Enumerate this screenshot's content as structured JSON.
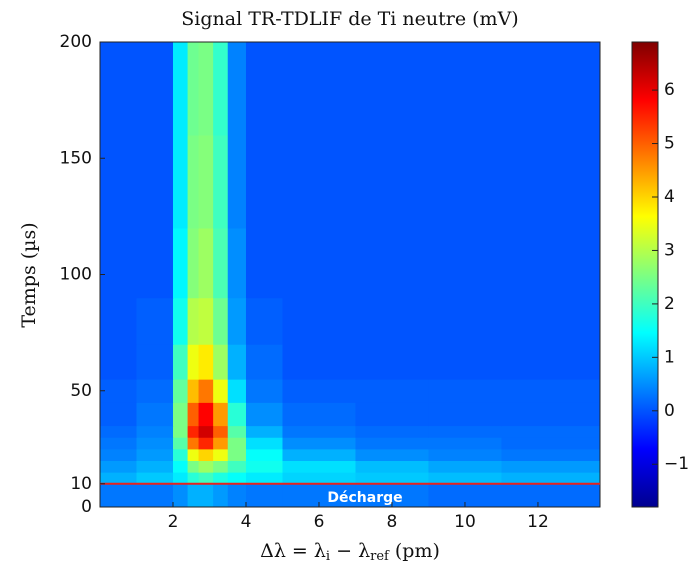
{
  "chart_data": {
    "type": "heatmap",
    "title": "Signal TR-TDLIF de Ti neutre (mV)",
    "xlabel": [
      "Δλ = λ",
      "i",
      " − λ",
      "ref",
      " (pm)"
    ],
    "ylabel": "Temps (µs)",
    "xlim": [
      0,
      13.7
    ],
    "ylim": [
      0,
      200
    ],
    "xticks": [
      2,
      4,
      6,
      8,
      10,
      12
    ],
    "yticks": [
      0,
      10,
      50,
      100,
      150,
      200
    ],
    "colormap": "jet",
    "clim": [
      -1.8,
      6.9
    ],
    "cticks": [
      {
        "value": -1,
        "label": "−1"
      },
      0,
      1,
      2,
      3,
      4,
      5,
      6
    ],
    "xbins": [
      0,
      1,
      2,
      2.4,
      2.7,
      3.1,
      3.5,
      4,
      5,
      7,
      9,
      11,
      13.7
    ],
    "ybins": [
      0,
      10,
      15,
      20,
      25,
      30,
      35,
      45,
      55,
      70,
      90,
      120,
      160,
      200
    ],
    "z": [
      [
        0.3,
        0.3,
        0.5,
        0.8,
        0.8,
        0.6,
        0.4,
        0.3,
        0.3,
        0.3,
        0.2,
        0.2
      ],
      [
        0.8,
        1.0,
        1.3,
        1.8,
        2.0,
        1.7,
        1.5,
        1.3,
        1.1,
        1.0,
        0.9,
        0.8
      ],
      [
        0.6,
        0.8,
        1.5,
        2.5,
        2.8,
        2.5,
        2.0,
        1.6,
        1.2,
        0.9,
        0.7,
        0.6
      ],
      [
        0.4,
        0.6,
        1.8,
        3.5,
        4.0,
        3.5,
        2.5,
        1.5,
        0.8,
        0.5,
        0.4,
        0.3
      ],
      [
        0.3,
        0.5,
        2.2,
        4.8,
        5.5,
        4.5,
        2.5,
        1.2,
        0.5,
        0.3,
        0.3,
        0.2
      ],
      [
        0.2,
        0.4,
        2.5,
        5.5,
        6.2,
        5.0,
        2.2,
        0.8,
        0.3,
        0.2,
        0.2,
        0.2
      ],
      [
        0.1,
        0.3,
        2.5,
        5.0,
        5.8,
        4.5,
        1.8,
        0.5,
        0.2,
        0.1,
        0.1,
        0.1
      ],
      [
        0.1,
        0.2,
        2.3,
        4.2,
        4.8,
        3.5,
        1.2,
        0.3,
        0.1,
        0.1,
        0.1,
        0.1
      ],
      [
        0,
        0.1,
        2.0,
        3.5,
        3.8,
        2.8,
        0.8,
        0.2,
        0,
        0,
        0,
        0
      ],
      [
        0,
        0.1,
        1.6,
        3.0,
        3.1,
        2.4,
        0.6,
        0.1,
        0,
        0,
        0,
        0
      ],
      [
        0,
        0,
        1.4,
        2.6,
        2.8,
        2.1,
        0.5,
        0,
        0,
        0,
        0,
        0
      ],
      [
        0,
        0,
        1.3,
        2.5,
        2.6,
        2.0,
        0.4,
        0,
        0,
        0,
        0,
        0
      ],
      [
        0,
        0,
        1.3,
        2.4,
        2.5,
        1.9,
        0.4,
        0,
        0,
        0,
        0,
        0
      ]
    ],
    "marker_line": {
      "value": 10,
      "color": "#e8221c",
      "label": "Décharge"
    }
  }
}
